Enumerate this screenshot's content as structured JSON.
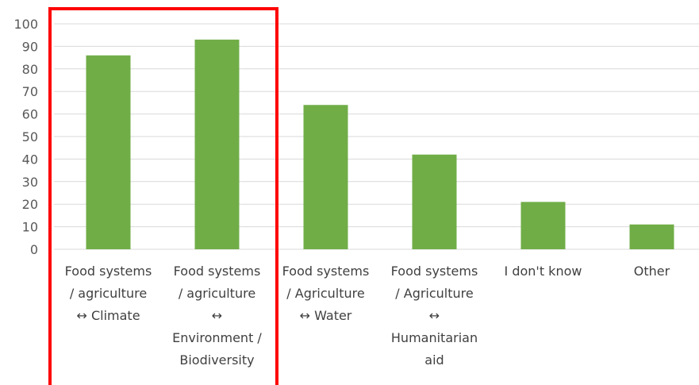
{
  "chart_data": {
    "type": "bar",
    "categories": [
      [
        "Food systems",
        "/ agriculture",
        "↔ Climate"
      ],
      [
        "Food systems",
        "/ agriculture",
        "↔",
        "Environment /",
        "Biodiversity"
      ],
      [
        "Food systems",
        "/ Agriculture",
        "↔ Water"
      ],
      [
        "Food systems",
        "/ Agriculture",
        "↔",
        "Humanitarian",
        "aid"
      ],
      [
        "I don't know"
      ],
      [
        "Other"
      ]
    ],
    "values": [
      86,
      93,
      64,
      42,
      21,
      11
    ],
    "ylim": [
      0,
      100
    ],
    "yticks": [
      0,
      10,
      20,
      30,
      40,
      50,
      60,
      70,
      80,
      90,
      100
    ],
    "grid": true,
    "bar_color": "#70AD47",
    "grid_color": "#D9D9D9",
    "highlight": {
      "categories": [
        0,
        1
      ],
      "color": "#FF0000"
    }
  }
}
